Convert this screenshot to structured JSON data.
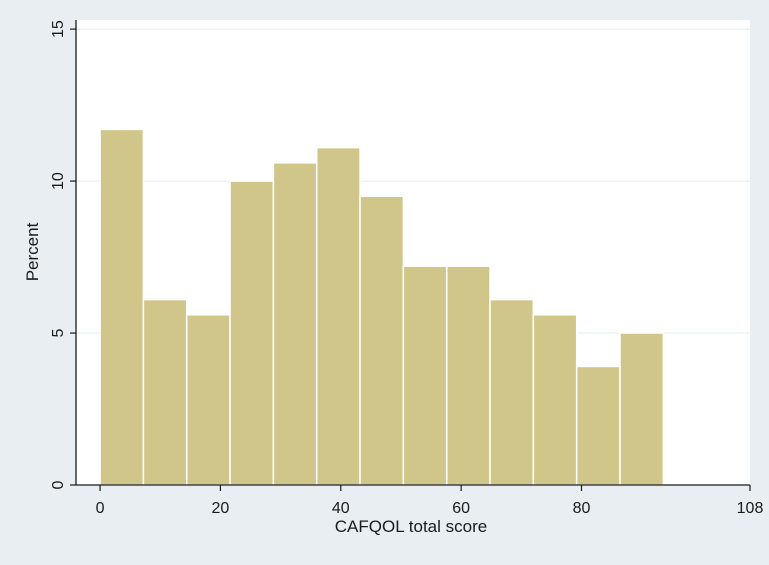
{
  "chart_data": {
    "type": "bar",
    "subtype": "histogram",
    "xlabel": "CAFQOL total score",
    "ylabel": "Percent",
    "xlim": [
      -4,
      108
    ],
    "ylim": [
      0,
      15.3
    ],
    "xticks": [
      0,
      20,
      40,
      60,
      80,
      108
    ],
    "xtick_labels": [
      "0",
      "20",
      "40",
      "60",
      "80",
      "108"
    ],
    "yticks": [
      0,
      5,
      10,
      15
    ],
    "ytick_labels": [
      "0",
      "5",
      "10",
      "15"
    ],
    "grid": "horizontal",
    "legend": "none",
    "bin_width": 7.2,
    "bins": [
      {
        "start": 0.0,
        "end": 7.2,
        "value": 11.7
      },
      {
        "start": 7.2,
        "end": 14.4,
        "value": 6.1
      },
      {
        "start": 14.4,
        "end": 21.6,
        "value": 5.6
      },
      {
        "start": 21.6,
        "end": 28.8,
        "value": 10.0
      },
      {
        "start": 28.8,
        "end": 36.0,
        "value": 10.6
      },
      {
        "start": 36.0,
        "end": 43.2,
        "value": 11.1
      },
      {
        "start": 43.2,
        "end": 50.4,
        "value": 9.5
      },
      {
        "start": 50.4,
        "end": 57.6,
        "value": 7.2
      },
      {
        "start": 57.6,
        "end": 64.8,
        "value": 7.2
      },
      {
        "start": 64.8,
        "end": 72.0,
        "value": 6.1
      },
      {
        "start": 72.0,
        "end": 79.2,
        "value": 5.6
      },
      {
        "start": 79.2,
        "end": 86.4,
        "value": 3.9
      },
      {
        "start": 86.4,
        "end": 93.6,
        "value": 5.0
      }
    ]
  },
  "colors": {
    "background": "#e8eef2",
    "plot_background": "#ffffff",
    "bar_fill": "#d0c68a",
    "bar_edge": "#ffffff",
    "gridline": "#e3ecef",
    "axis": "#1a1a1a"
  }
}
